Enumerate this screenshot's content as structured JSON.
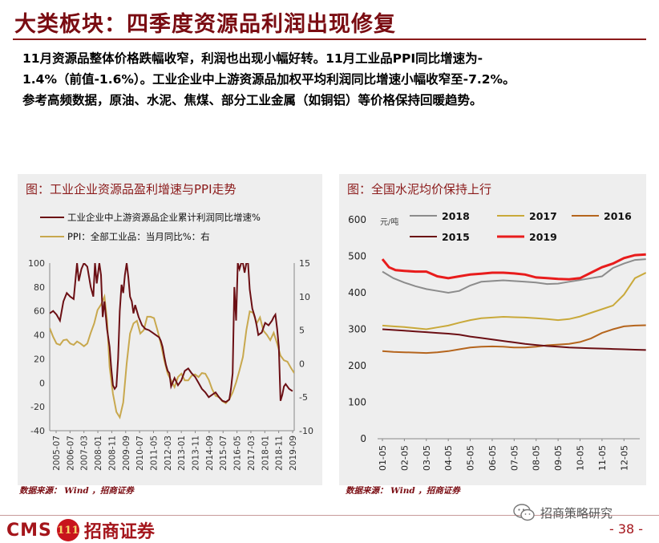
{
  "header": {
    "title": "大类板块：四季度资源品利润出现修复"
  },
  "summary": {
    "line1": "11月资源品整体价格跌幅收窄，利润也出现小幅好转。11月工业品PPI同比增速为-",
    "line2": "1.4%（前值-1.6%）。工业企业中上游资源品加权平均利润同比增速小幅收窄至-7.2%。",
    "line3": "参考高频数据，原油、水泥、焦煤、部分工业金属（如铜铝）等价格保持回暖趋势。"
  },
  "left_panel": {
    "title": "图：工业企业资源品盈利增速与PPI走势",
    "source": "数据来源： Wind ，招商证券"
  },
  "right_panel": {
    "title": "图：全国水泥均价保持上行",
    "source": "数据来源： Wind ，招商证券"
  },
  "footer": {
    "cms": "CMS",
    "badge": "111",
    "broker": "招商证券",
    "wechat": "招商策略研究",
    "page": "- 38 -"
  },
  "colors": {
    "brand": "#a4151b",
    "title": "#7a0c12",
    "profit_line": "#6b0f14",
    "ppi_line": "#c8a84e",
    "panel_bg": "#eeeeee",
    "c2018": "#8c8c8c",
    "c2017": "#c9a93a",
    "c2016": "#b5651d",
    "c2015": "#6b0f14",
    "c2019": "#e81c1c"
  },
  "chart_data": [
    {
      "type": "line",
      "title": "图：工业企业资源品盈利增速与PPI走势",
      "x_ticks": [
        "2005-07",
        "2006-07",
        "2007-03",
        "2008-01",
        "2008-11",
        "2009-09",
        "2010-07",
        "2011-05",
        "2012-03",
        "2013-01",
        "2013-11",
        "2014-09",
        "2015-07",
        "2016-05",
        "2017-03",
        "2018-01",
        "2018-11",
        "2019-09"
      ],
      "x_range": [
        2005.5,
        2019.8
      ],
      "ylim_left": [
        -40,
        100
      ],
      "yticks_left": [
        -40,
        -20,
        0,
        20,
        40,
        60,
        80,
        100
      ],
      "ylim_right": [
        -10,
        15
      ],
      "yticks_right": [
        -10,
        -5,
        0,
        5,
        10,
        15
      ],
      "legend": "top",
      "series": [
        {
          "name": "工业企业中上游资源品企业累计利润同比增速%",
          "axis": "left",
          "x": [
            2005.5,
            2005.7,
            2005.9,
            2006.1,
            2006.3,
            2006.5,
            2006.7,
            2006.9,
            2007.1,
            2007.2,
            2007.35,
            2007.5,
            2007.7,
            2007.9,
            2008.05,
            2008.15,
            2008.25,
            2008.4,
            2008.5,
            2008.6,
            2008.7,
            2008.85,
            2009.0,
            2009.1,
            2009.2,
            2009.3,
            2009.4,
            2009.5,
            2009.6,
            2009.7,
            2009.8,
            2009.9,
            2010.0,
            2010.1,
            2010.2,
            2010.3,
            2010.4,
            2010.5,
            2010.7,
            2010.9,
            2011.1,
            2011.3,
            2011.5,
            2011.7,
            2011.9,
            2012.0,
            2012.1,
            2012.2,
            2012.3,
            2012.4,
            2012.5,
            2012.6,
            2012.8,
            2013.0,
            2013.2,
            2013.4,
            2013.6,
            2013.8,
            2014.0,
            2014.2,
            2014.4,
            2014.6,
            2014.8,
            2015.0,
            2015.2,
            2015.4,
            2015.6,
            2015.8,
            2016.0,
            2016.1,
            2016.2,
            2016.3,
            2016.4,
            2016.5,
            2016.6,
            2016.7,
            2016.8,
            2016.9,
            2017.0,
            2017.1,
            2017.2,
            2017.35,
            2017.5,
            2017.6,
            2017.7,
            2017.9,
            2018.1,
            2018.3,
            2018.5,
            2018.6,
            2018.7,
            2018.8,
            2018.9,
            2019.0,
            2019.1,
            2019.2,
            2019.3,
            2019.5,
            2019.7
          ],
          "values": [
            58,
            60,
            57,
            52,
            68,
            75,
            72,
            70,
            100,
            85,
            95,
            100,
            97,
            80,
            72,
            100,
            83,
            100,
            90,
            55,
            68,
            45,
            30,
            12,
            -2,
            -5,
            -3,
            20,
            60,
            82,
            75,
            90,
            100,
            88,
            72,
            68,
            58,
            65,
            55,
            48,
            45,
            44,
            42,
            40,
            38,
            35,
            30,
            22,
            15,
            10,
            8,
            -3,
            4,
            -2,
            2,
            10,
            12,
            8,
            5,
            0,
            -5,
            -8,
            -12,
            -10,
            -8,
            -12,
            -15,
            -16,
            -14,
            -5,
            8,
            80,
            52,
            100,
            95,
            100,
            100,
            92,
            100,
            100,
            78,
            62,
            55,
            48,
            40,
            42,
            50,
            48,
            52,
            55,
            57,
            45,
            30,
            -15,
            -10,
            -3,
            -1,
            -5,
            -7
          ]
        },
        {
          "name": "PPI：全部工业品：当月同比%：右",
          "axis": "right",
          "x": [
            2005.5,
            2005.7,
            2005.9,
            2006.1,
            2006.3,
            2006.5,
            2006.7,
            2006.9,
            2007.1,
            2007.3,
            2007.5,
            2007.7,
            2007.9,
            2008.1,
            2008.3,
            2008.5,
            2008.7,
            2008.85,
            2009.0,
            2009.2,
            2009.4,
            2009.6,
            2009.8,
            2010.0,
            2010.2,
            2010.4,
            2010.6,
            2010.8,
            2011.0,
            2011.2,
            2011.4,
            2011.6,
            2011.8,
            2012.0,
            2012.2,
            2012.4,
            2012.6,
            2012.8,
            2013.0,
            2013.2,
            2013.4,
            2013.6,
            2013.8,
            2014.0,
            2014.2,
            2014.4,
            2014.6,
            2014.8,
            2015.0,
            2015.2,
            2015.4,
            2015.6,
            2015.8,
            2016.0,
            2016.2,
            2016.4,
            2016.6,
            2016.8,
            2017.0,
            2017.2,
            2017.4,
            2017.6,
            2017.8,
            2018.0,
            2018.2,
            2018.4,
            2018.6,
            2018.8,
            2019.0,
            2019.2,
            2019.4,
            2019.6,
            2019.8
          ],
          "values": [
            5.3,
            4.0,
            3.0,
            2.8,
            3.5,
            3.6,
            3.0,
            2.8,
            3.3,
            3.0,
            2.6,
            3.0,
            4.6,
            6.0,
            8.0,
            8.8,
            10.0,
            6.5,
            -0.5,
            -4.5,
            -7.2,
            -8.0,
            -5.8,
            0.0,
            4.5,
            6.0,
            6.4,
            4.5,
            5.0,
            7.0,
            7.0,
            6.8,
            5.0,
            3.0,
            0.5,
            -1.5,
            -2.5,
            -3.5,
            -2.0,
            -1.5,
            -2.5,
            -2.5,
            -1.8,
            -1.6,
            -2.0,
            -1.4,
            -1.5,
            -2.4,
            -3.8,
            -4.8,
            -5.0,
            -5.6,
            -5.9,
            -5.3,
            -4.3,
            -2.8,
            -1.0,
            1.0,
            5.0,
            7.8,
            7.6,
            6.0,
            6.9,
            4.9,
            4.3,
            3.5,
            4.6,
            3.0,
            1.2,
            0.5,
            0.3,
            -0.6,
            -1.4
          ]
        }
      ]
    },
    {
      "type": "line",
      "title": "图：全国水泥均价保持上行",
      "ylabel": "元/吨",
      "categories": [
        "01-05",
        "02-05",
        "03-05",
        "04-05",
        "05-05",
        "06-05",
        "07-05",
        "08-05",
        "09-05",
        "10-05",
        "11-05",
        "12-05"
      ],
      "ylim": [
        0,
        600
      ],
      "yticks": [
        0,
        100,
        200,
        300,
        400,
        500,
        600
      ],
      "legend": "top",
      "series": [
        {
          "name": "2018",
          "x": [
            0,
            0.5,
            1,
            1.5,
            2,
            2.5,
            3,
            3.5,
            4,
            4.5,
            5,
            5.5,
            6,
            6.5,
            7,
            7.5,
            8,
            8.5,
            9,
            9.5,
            10,
            10.5,
            11,
            11.5,
            12
          ],
          "values": [
            458,
            440,
            428,
            418,
            410,
            405,
            400,
            405,
            420,
            430,
            432,
            434,
            432,
            430,
            428,
            424,
            425,
            430,
            435,
            440,
            445,
            468,
            480,
            490,
            492
          ]
        },
        {
          "name": "2017",
          "x": [
            0,
            0.5,
            1,
            1.5,
            2,
            2.5,
            3,
            3.5,
            4,
            4.5,
            5,
            5.5,
            6,
            6.5,
            7,
            7.5,
            8,
            8.5,
            9,
            9.5,
            10,
            10.5,
            11,
            11.5,
            12
          ],
          "values": [
            310,
            308,
            306,
            303,
            300,
            305,
            310,
            318,
            325,
            330,
            332,
            334,
            333,
            332,
            330,
            328,
            325,
            328,
            335,
            345,
            355,
            365,
            395,
            440,
            455
          ]
        },
        {
          "name": "2016",
          "x": [
            0,
            0.5,
            1,
            1.5,
            2,
            2.5,
            3,
            3.5,
            4,
            4.5,
            5,
            5.5,
            6,
            6.5,
            7,
            7.5,
            8,
            8.5,
            9,
            9.5,
            10,
            10.5,
            11,
            11.5,
            12
          ],
          "values": [
            240,
            238,
            237,
            236,
            235,
            237,
            240,
            245,
            250,
            252,
            253,
            252,
            250,
            250,
            252,
            256,
            258,
            260,
            265,
            275,
            290,
            300,
            308,
            310,
            311
          ]
        },
        {
          "name": "2015",
          "x": [
            0,
            0.5,
            1,
            1.5,
            2,
            2.5,
            3,
            3.5,
            4,
            4.5,
            5,
            5.5,
            6,
            6.5,
            7,
            7.5,
            8,
            8.5,
            9,
            9.5,
            10,
            10.5,
            11,
            11.5,
            12
          ],
          "values": [
            300,
            298,
            296,
            294,
            292,
            290,
            288,
            285,
            280,
            276,
            272,
            268,
            264,
            260,
            257,
            254,
            252,
            250,
            249,
            248,
            247,
            246,
            245,
            244,
            243
          ]
        },
        {
          "name": "2019",
          "x": [
            0,
            0.3,
            0.6,
            1,
            1.5,
            2,
            2.5,
            3,
            3.5,
            4,
            4.5,
            5,
            5.5,
            6,
            6.5,
            7,
            7.5,
            8,
            8.5,
            9,
            9.5,
            10,
            10.5,
            11,
            11.5,
            12
          ],
          "values": [
            492,
            470,
            462,
            460,
            458,
            458,
            445,
            440,
            445,
            450,
            452,
            455,
            455,
            453,
            450,
            442,
            440,
            438,
            437,
            440,
            455,
            470,
            480,
            495,
            503,
            505
          ]
        }
      ]
    }
  ]
}
